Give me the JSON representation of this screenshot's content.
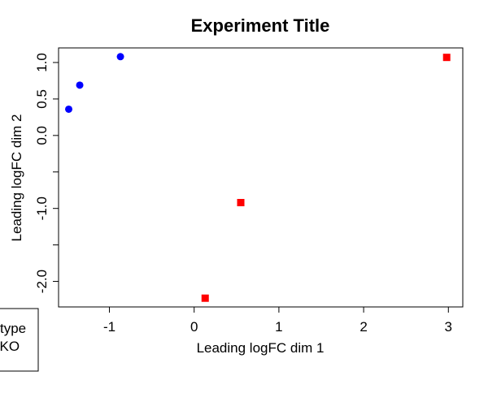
{
  "chart_data": {
    "type": "scatter",
    "title": "Experiment Title",
    "xlabel": "Leading logFC dim 1",
    "ylabel": "Leading logFC dim 2",
    "xlim": [
      -1.6,
      3.17
    ],
    "ylim": [
      -2.35,
      1.2
    ],
    "x_ticks": [
      -1,
      0,
      1,
      2,
      3
    ],
    "x_tick_labels": [
      "-1",
      "0",
      "1",
      "2",
      "3"
    ],
    "y_ticks": [
      -2.0,
      -1.5,
      -1.0,
      -0.5,
      0.0,
      0.5,
      1.0
    ],
    "y_tick_labels": [
      "-2.0",
      "",
      "-1.0",
      "",
      "0.0",
      "0.5",
      "1.0"
    ],
    "grid": false,
    "legend_placement": "bottom-left",
    "series": [
      {
        "color": "#0000ff",
        "marker": "circle",
        "points": [
          {
            "x": -1.48,
            "y": 0.36
          },
          {
            "x": -1.35,
            "y": 0.69
          },
          {
            "x": -0.87,
            "y": 1.08
          }
        ]
      },
      {
        "color": "#ff0000",
        "marker": "square",
        "points": [
          {
            "x": 0.13,
            "y": -2.23
          },
          {
            "x": 0.55,
            "y": -0.92
          },
          {
            "x": 2.98,
            "y": 1.07
          }
        ]
      }
    ],
    "legend": {
      "entries": [
        "type",
        "cKO"
      ]
    }
  }
}
